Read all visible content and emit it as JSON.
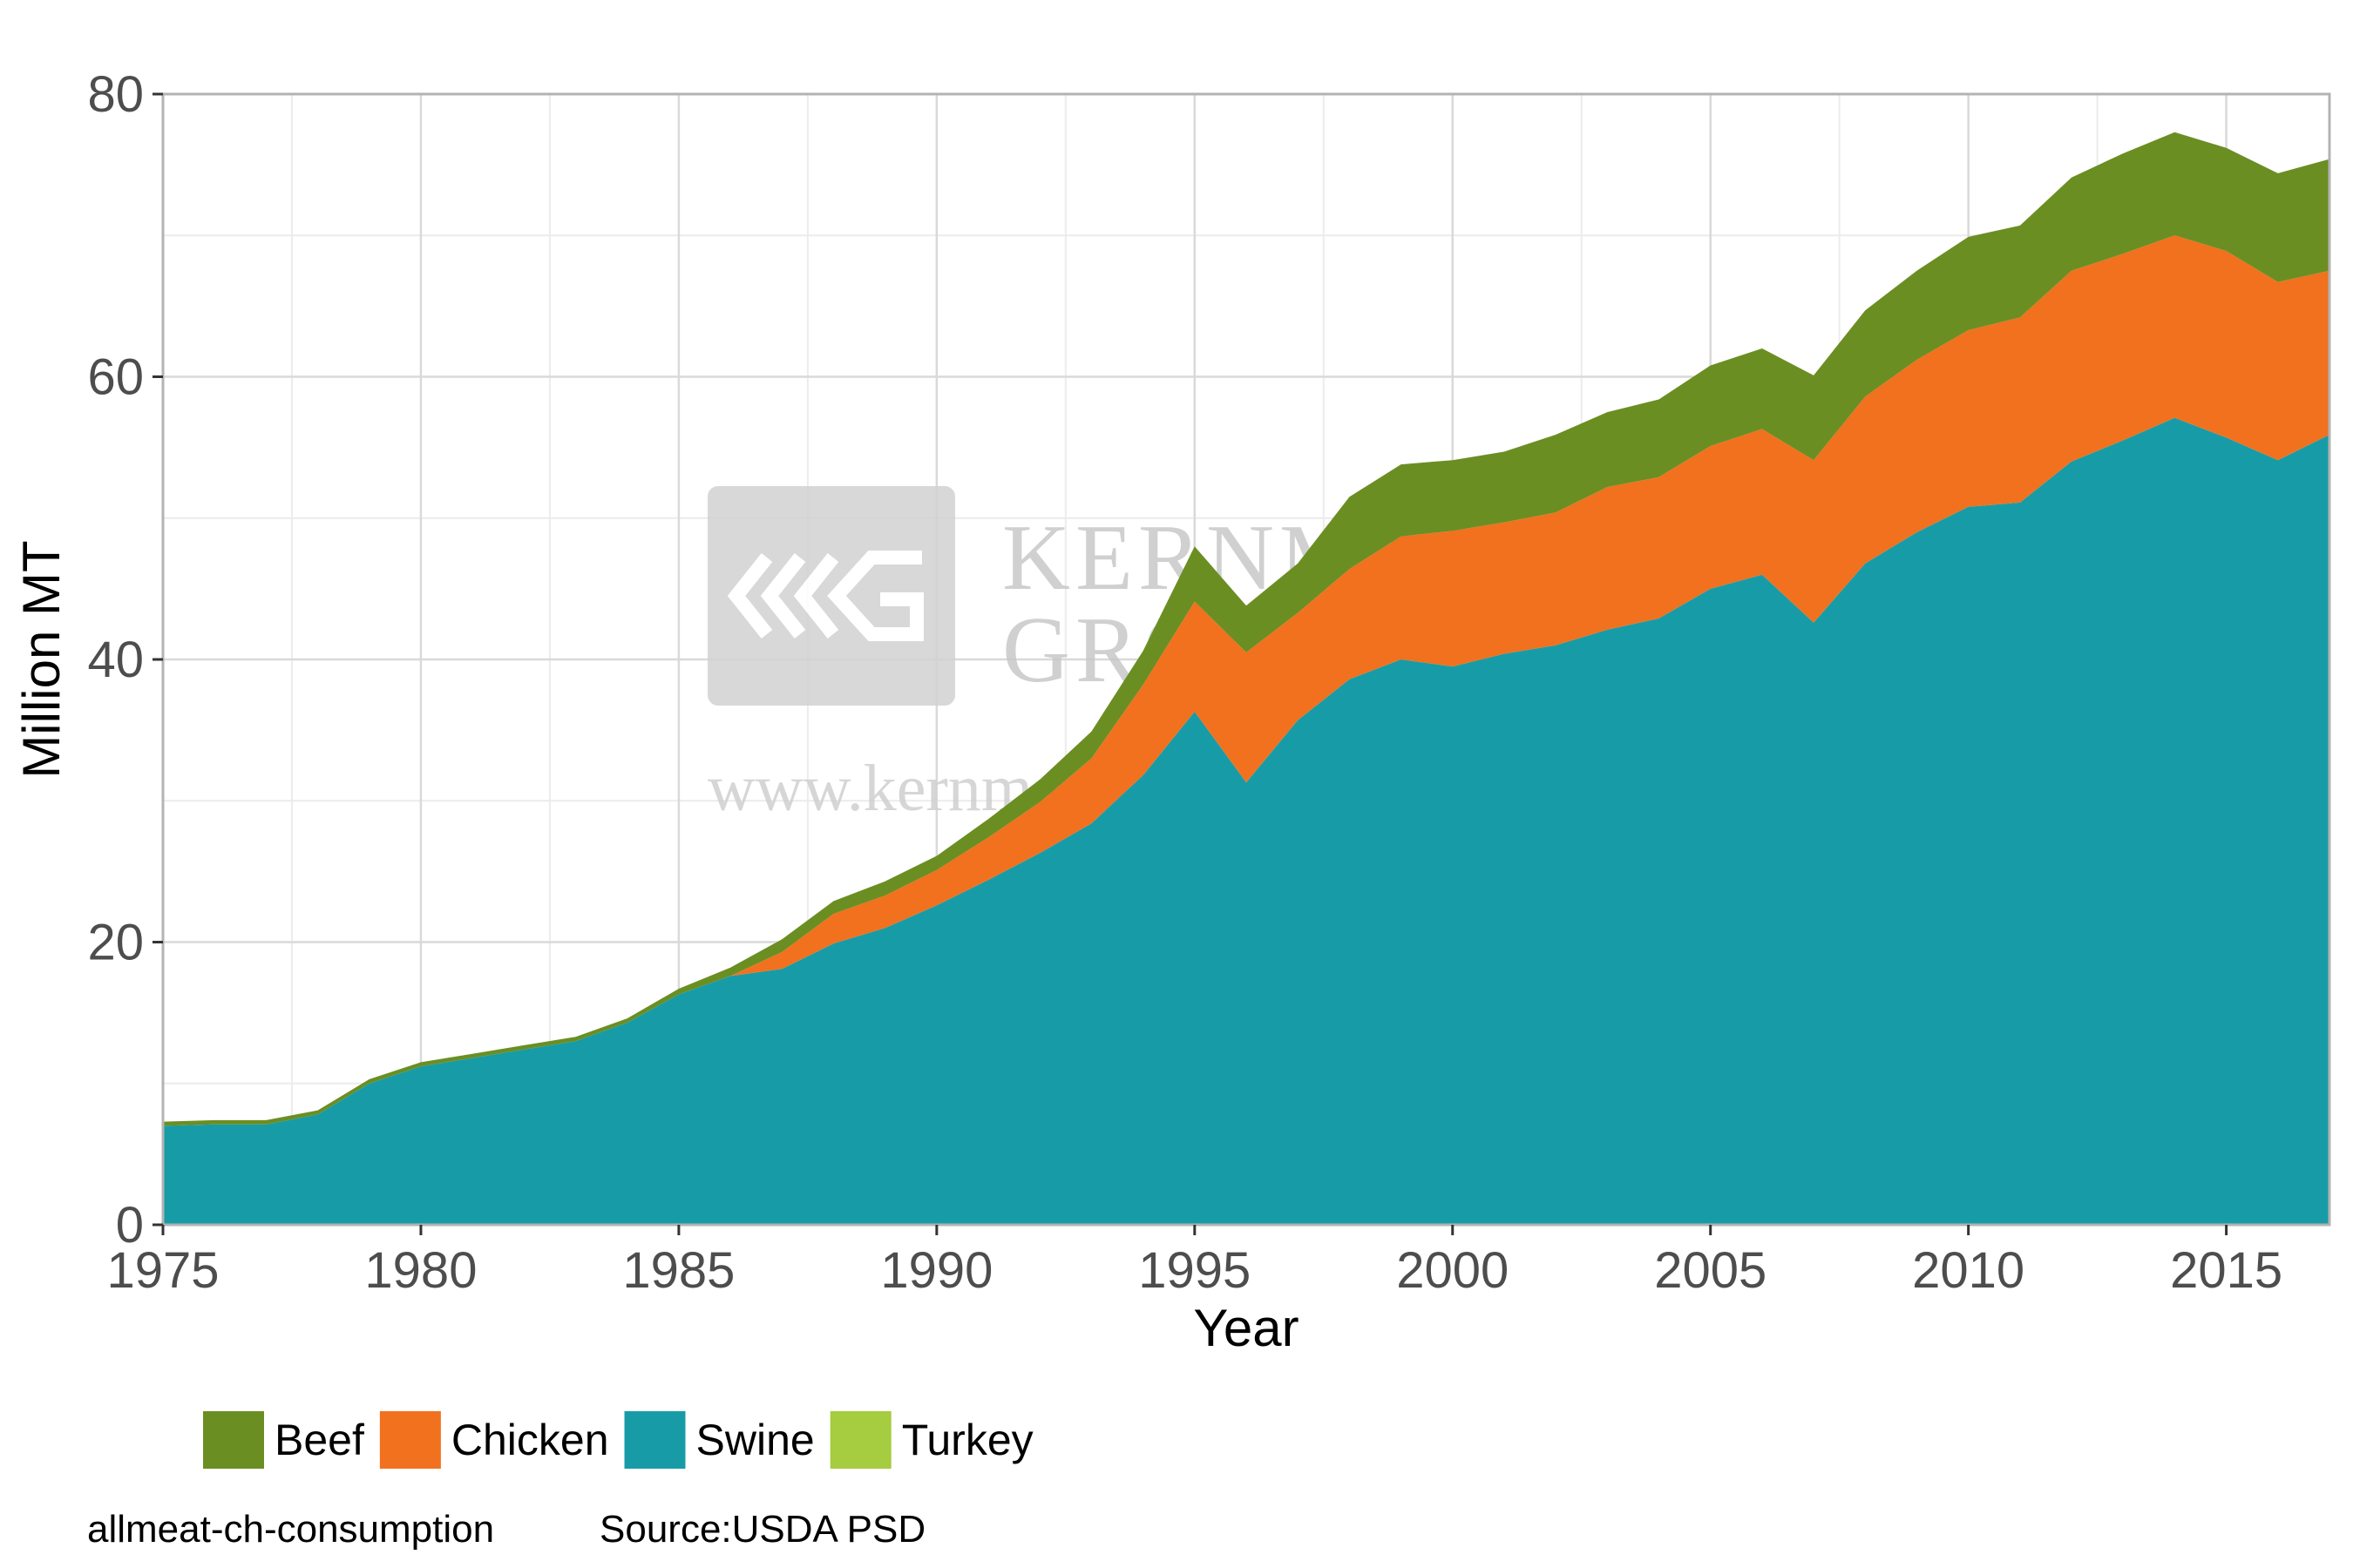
{
  "chart_data": {
    "type": "area",
    "stacked": true,
    "title": "",
    "xlabel": "Year",
    "ylabel": "Million MT",
    "xlim": [
      1975,
      2017
    ],
    "ylim": [
      0,
      80
    ],
    "x_ticks": [
      1975,
      1980,
      1985,
      1990,
      1995,
      2000,
      2005,
      2010,
      2015
    ],
    "y_ticks": [
      0,
      20,
      40,
      60,
      80
    ],
    "grid": true,
    "legend_position": "bottom-left",
    "x": [
      1975,
      1976,
      1977,
      1978,
      1979,
      1980,
      1981,
      1982,
      1983,
      1984,
      1985,
      1986,
      1987,
      1988,
      1989,
      1990,
      1991,
      1992,
      1993,
      1994,
      1995,
      1996,
      1997,
      1998,
      1999,
      2000,
      2001,
      2002,
      2003,
      2004,
      2005,
      2006,
      2007,
      2008,
      2009,
      2010,
      2011,
      2012,
      2013,
      2014,
      2015,
      2016,
      2017
    ],
    "series": [
      {
        "name": "Swine",
        "color": "#179ca7",
        "values": [
          7.0,
          7.1,
          7.1,
          7.8,
          10.0,
          11.2,
          11.8,
          12.4,
          13.0,
          14.3,
          16.3,
          17.6,
          18.1,
          19.9,
          21.0,
          22.6,
          24.4,
          26.3,
          28.4,
          31.8,
          36.3,
          31.3,
          35.7,
          38.6,
          40.0,
          39.5,
          40.4,
          41.0,
          42.1,
          42.9,
          45.0,
          46.0,
          42.6,
          46.8,
          49.0,
          50.8,
          51.1,
          54.0,
          55.5,
          57.1,
          55.7,
          54.1,
          55.9
        ]
      },
      {
        "name": "Chicken",
        "color": "#f1711e",
        "values": [
          0,
          0,
          0,
          0,
          0,
          0,
          0,
          0,
          0,
          0,
          0,
          0,
          1.2,
          2.1,
          2.3,
          2.5,
          3.0,
          3.6,
          4.6,
          6.4,
          7.8,
          9.2,
          7.6,
          7.8,
          8.7,
          9.6,
          9.3,
          9.4,
          10.1,
          10.0,
          10.1,
          10.3,
          11.5,
          11.8,
          12.2,
          12.5,
          13.1,
          13.5,
          13.2,
          12.9,
          13.2,
          12.6,
          11.6
        ]
      },
      {
        "name": "Beef",
        "color": "#6b8e23",
        "values": [
          0.3,
          0.3,
          0.3,
          0.3,
          0.3,
          0.3,
          0.3,
          0.3,
          0.3,
          0.3,
          0.4,
          0.6,
          0.9,
          0.9,
          1.0,
          1.0,
          1.3,
          1.6,
          1.9,
          2.4,
          3.9,
          3.3,
          3.5,
          5.1,
          5.1,
          5.0,
          5.0,
          5.5,
          5.3,
          5.5,
          5.7,
          5.7,
          6.0,
          6.1,
          6.3,
          6.6,
          6.5,
          6.6,
          7.1,
          7.3,
          7.3,
          7.7,
          7.9
        ]
      },
      {
        "name": "Turkey",
        "color": "#a6cc3f",
        "values": [
          0,
          0,
          0,
          0,
          0,
          0,
          0,
          0,
          0,
          0,
          0,
          0,
          0,
          0,
          0,
          0,
          0,
          0,
          0,
          0,
          0,
          0,
          0,
          0,
          0,
          0,
          0,
          0,
          0,
          0,
          0,
          0,
          0,
          0,
          0,
          0,
          0,
          0,
          0,
          0,
          0,
          0,
          0
        ]
      }
    ],
    "legend_order": [
      "Beef",
      "Chicken",
      "Swine",
      "Turkey"
    ]
  },
  "caption": {
    "chart_id": "allmeat-ch-consumption",
    "source": "Source:USDA PSD"
  },
  "watermark": {
    "line1": "KERNMANTLE",
    "line2": "GROUP",
    "url": "www.kernmantlegroup.com"
  }
}
